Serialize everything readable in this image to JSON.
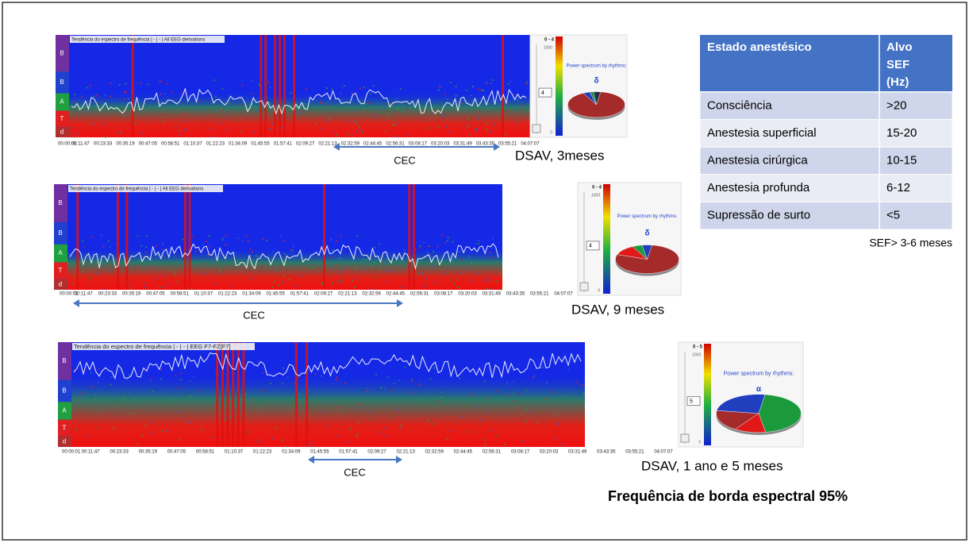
{
  "panels": [
    {
      "title": "Tendência do espectro de frequência | - | - | All EEG derivations",
      "bands": [
        "B",
        "B",
        "A",
        "T",
        "d"
      ],
      "time_labels": [
        "00:00:01",
        "00:11:47",
        "00:23:33",
        "00:35:19",
        "00:47:05",
        "00:58:51",
        "01:10:37",
        "01:22:23",
        "01:34:09",
        "01:45:55",
        "01:57:41",
        "02:09:27",
        "02:21:13",
        "02:32:59",
        "02:44:45",
        "02:56:31",
        "03:08:17",
        "03:20:03",
        "03:31:49",
        "03:43:35",
        "03:55:21",
        "04:07:07"
      ],
      "scale": "0 - 4",
      "scale_max": "1000",
      "scale_min": "0",
      "spinner": "4",
      "widget_title": "Power spectrum by rhythms:",
      "rhythm": "δ",
      "pie": [
        {
          "color": "#a52a2a",
          "value": 90
        },
        {
          "color": "#1f3fbf",
          "value": 4
        },
        {
          "color": "#1a8a3a",
          "value": 2
        },
        {
          "color": "#203040",
          "value": 4
        }
      ],
      "caption": "DSAV, 3meses",
      "cec": "CEC"
    },
    {
      "title": "Tendência do espectro de frequência | - | - | All EEG derivations",
      "bands": [
        "B",
        "B",
        "A",
        "T",
        "d"
      ],
      "time_labels": [
        "00:00:01",
        "00:11:47",
        "00:23:33",
        "00:35:19",
        "00:47:05",
        "00:58:51",
        "01:10:37",
        "01:22:23",
        "01:34:09",
        "01:45:55",
        "01:57:41",
        "02:09:27",
        "02:21:13",
        "02:32:59",
        "02:44:45",
        "02:56:31",
        "03:08:17",
        "03:20:03",
        "03:31:49",
        "03:43:35",
        "03:55:21",
        "04:07:07"
      ],
      "scale": "0 - 4",
      "scale_max": "1000",
      "scale_min": "0",
      "spinner": "4",
      "widget_title": "Power spectrum by rhythms:",
      "rhythm": "δ",
      "pie": [
        {
          "color": "#a52a2a",
          "value": 78
        },
        {
          "color": "#e01818",
          "value": 12
        },
        {
          "color": "#1a9a3a",
          "value": 5
        },
        {
          "color": "#1f3fbf",
          "value": 5
        }
      ],
      "caption": "DSAV, 9 meses",
      "cec": "CEC"
    },
    {
      "title": "Tendência do espectro de frequência | - | - | EEG F7-FZ[F7]",
      "bands": [
        "B",
        "B",
        "A",
        "T",
        "d"
      ],
      "time_labels": [
        "00:00:01",
        "00:11:47",
        "00:23:33",
        "00:35:19",
        "00:47:05",
        "00:58:51",
        "01:10:37",
        "01:22:23",
        "01:34:09",
        "01:45:55",
        "01:57:41",
        "02:09:27",
        "02:21:13",
        "02:32:59",
        "02:44:45",
        "02:56:31",
        "03:08:17",
        "03:20:03",
        "03:31:49",
        "03:43:35",
        "03:55:21",
        "04:07:07"
      ],
      "scale": "0 - 5",
      "scale_max": "1000",
      "scale_min": "0",
      "spinner": "5",
      "widget_title": "Power spectrum by rhythms:",
      "rhythm": "α",
      "pie": [
        {
          "color": "#1a9a3a",
          "value": 45
        },
        {
          "color": "#e01818",
          "value": 12
        },
        {
          "color": "#a52a2a",
          "value": 18
        },
        {
          "color": "#1f3fbf",
          "value": 25
        }
      ],
      "caption": "DSAV, 1 ano e 5 meses",
      "cec": "CEC"
    }
  ],
  "table": {
    "header": [
      "Estado anestésico",
      "Alvo SEF (Hz)"
    ],
    "rows": [
      [
        "Consciência",
        ">20"
      ],
      [
        "Anestesia superficial",
        "15-20"
      ],
      [
        "Anestesia cirúrgica",
        "10-15"
      ],
      [
        "Anestesia profunda",
        "6-12"
      ],
      [
        "Supressão de surto",
        "<5"
      ]
    ]
  },
  "note": "SEF> 3-6 meses",
  "footer": "Frequência de borda espectral 95%"
}
